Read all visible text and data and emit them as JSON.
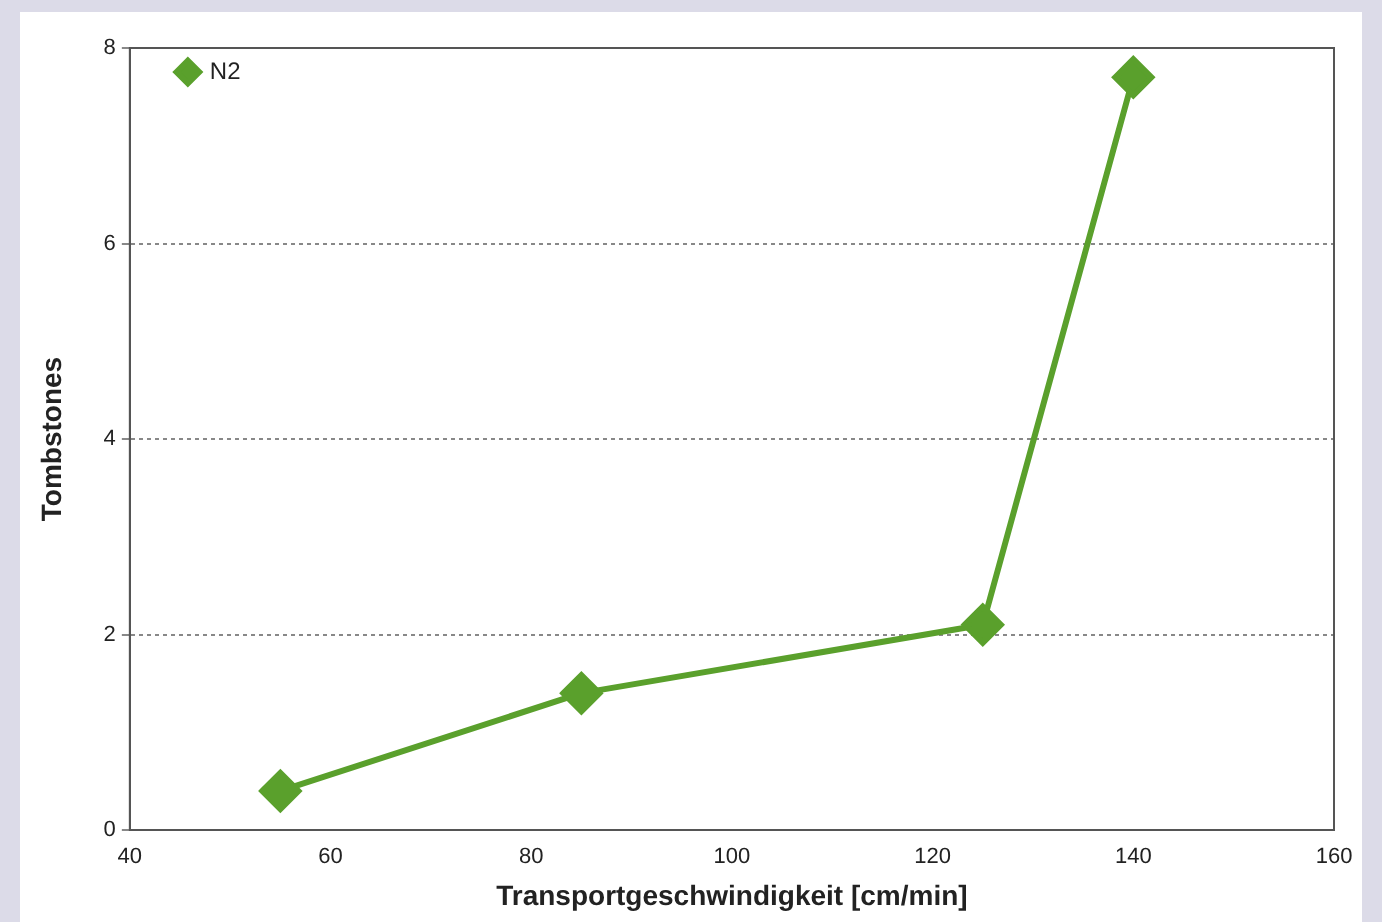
{
  "chart_data": {
    "type": "line",
    "xlabel": "Transportgeschwindigkeit [cm/min]",
    "ylabel": "Tombstones",
    "series": [
      {
        "name": "N2",
        "color": "#5aa02c",
        "x": [
          55,
          85,
          125,
          140
        ],
        "values": [
          0.4,
          1.4,
          2.1,
          7.7
        ]
      }
    ],
    "xlim": [
      40,
      160
    ],
    "xticks": [
      40,
      60,
      80,
      100,
      120,
      140,
      160
    ],
    "ylim": [
      0,
      8
    ],
    "yticks": [
      0,
      2,
      4,
      6,
      8
    ],
    "grid": "y",
    "legend": "top left",
    "marker": "diamond",
    "line_style": "solid"
  }
}
